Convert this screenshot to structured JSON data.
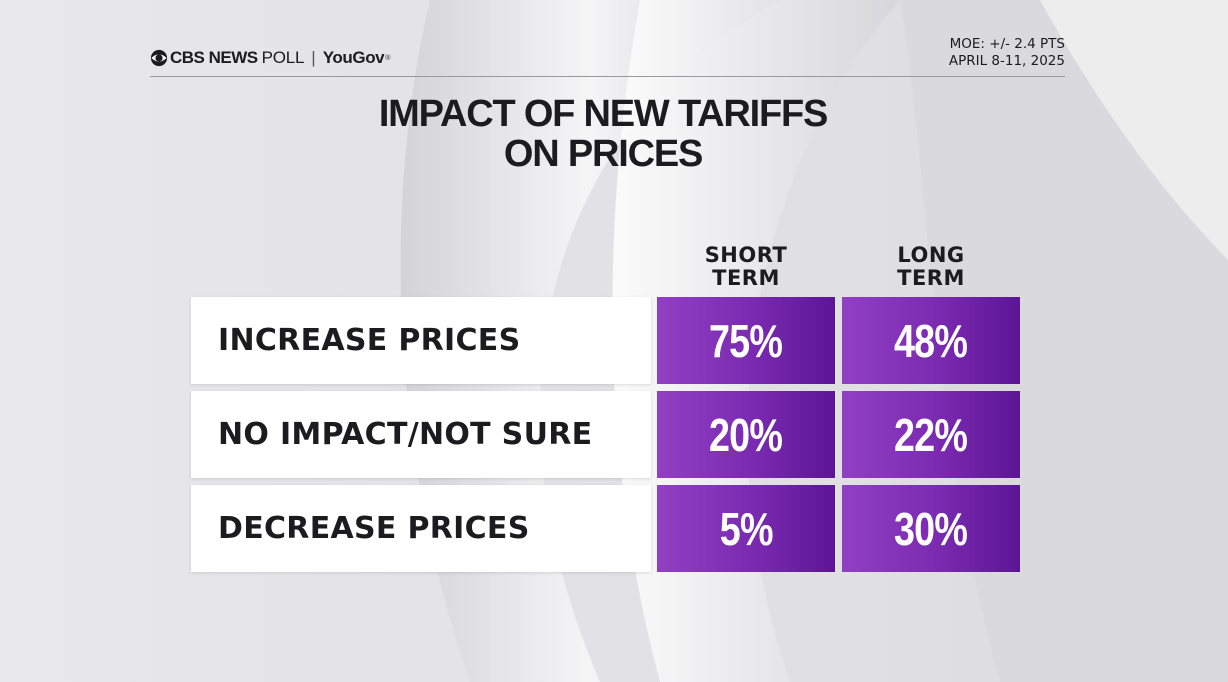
{
  "header": {
    "brand_cbs": "CBS NEWS",
    "brand_poll": "POLL",
    "brand_separator": "|",
    "brand_partner": "YouGov",
    "brand_registered": "®",
    "moe": "MOE: +/- 2.4 PTS",
    "dates": "APRIL 8-11, 2025"
  },
  "chart_data": {
    "type": "table",
    "title_line1": "IMPACT OF NEW TARIFFS",
    "title_line2": "ON PRICES",
    "columns": [
      {
        "line1": "SHORT",
        "line2": "TERM"
      },
      {
        "line1": "LONG",
        "line2": "TERM"
      }
    ],
    "rows": [
      {
        "label": "INCREASE PRICES",
        "values": [
          "75%",
          "48%"
        ]
      },
      {
        "label": "NO IMPACT/NOT SURE",
        "values": [
          "20%",
          "22%"
        ]
      },
      {
        "label": "DECREASE PRICES",
        "values": [
          "5%",
          "30%"
        ]
      }
    ],
    "numeric_values": [
      [
        75,
        48
      ],
      [
        20,
        22
      ],
      [
        5,
        30
      ]
    ],
    "unit": "%"
  },
  "colors": {
    "cell_purple": "#7a2ab0",
    "text_dark": "#1c1c1e",
    "background": "#e4e4e6"
  }
}
